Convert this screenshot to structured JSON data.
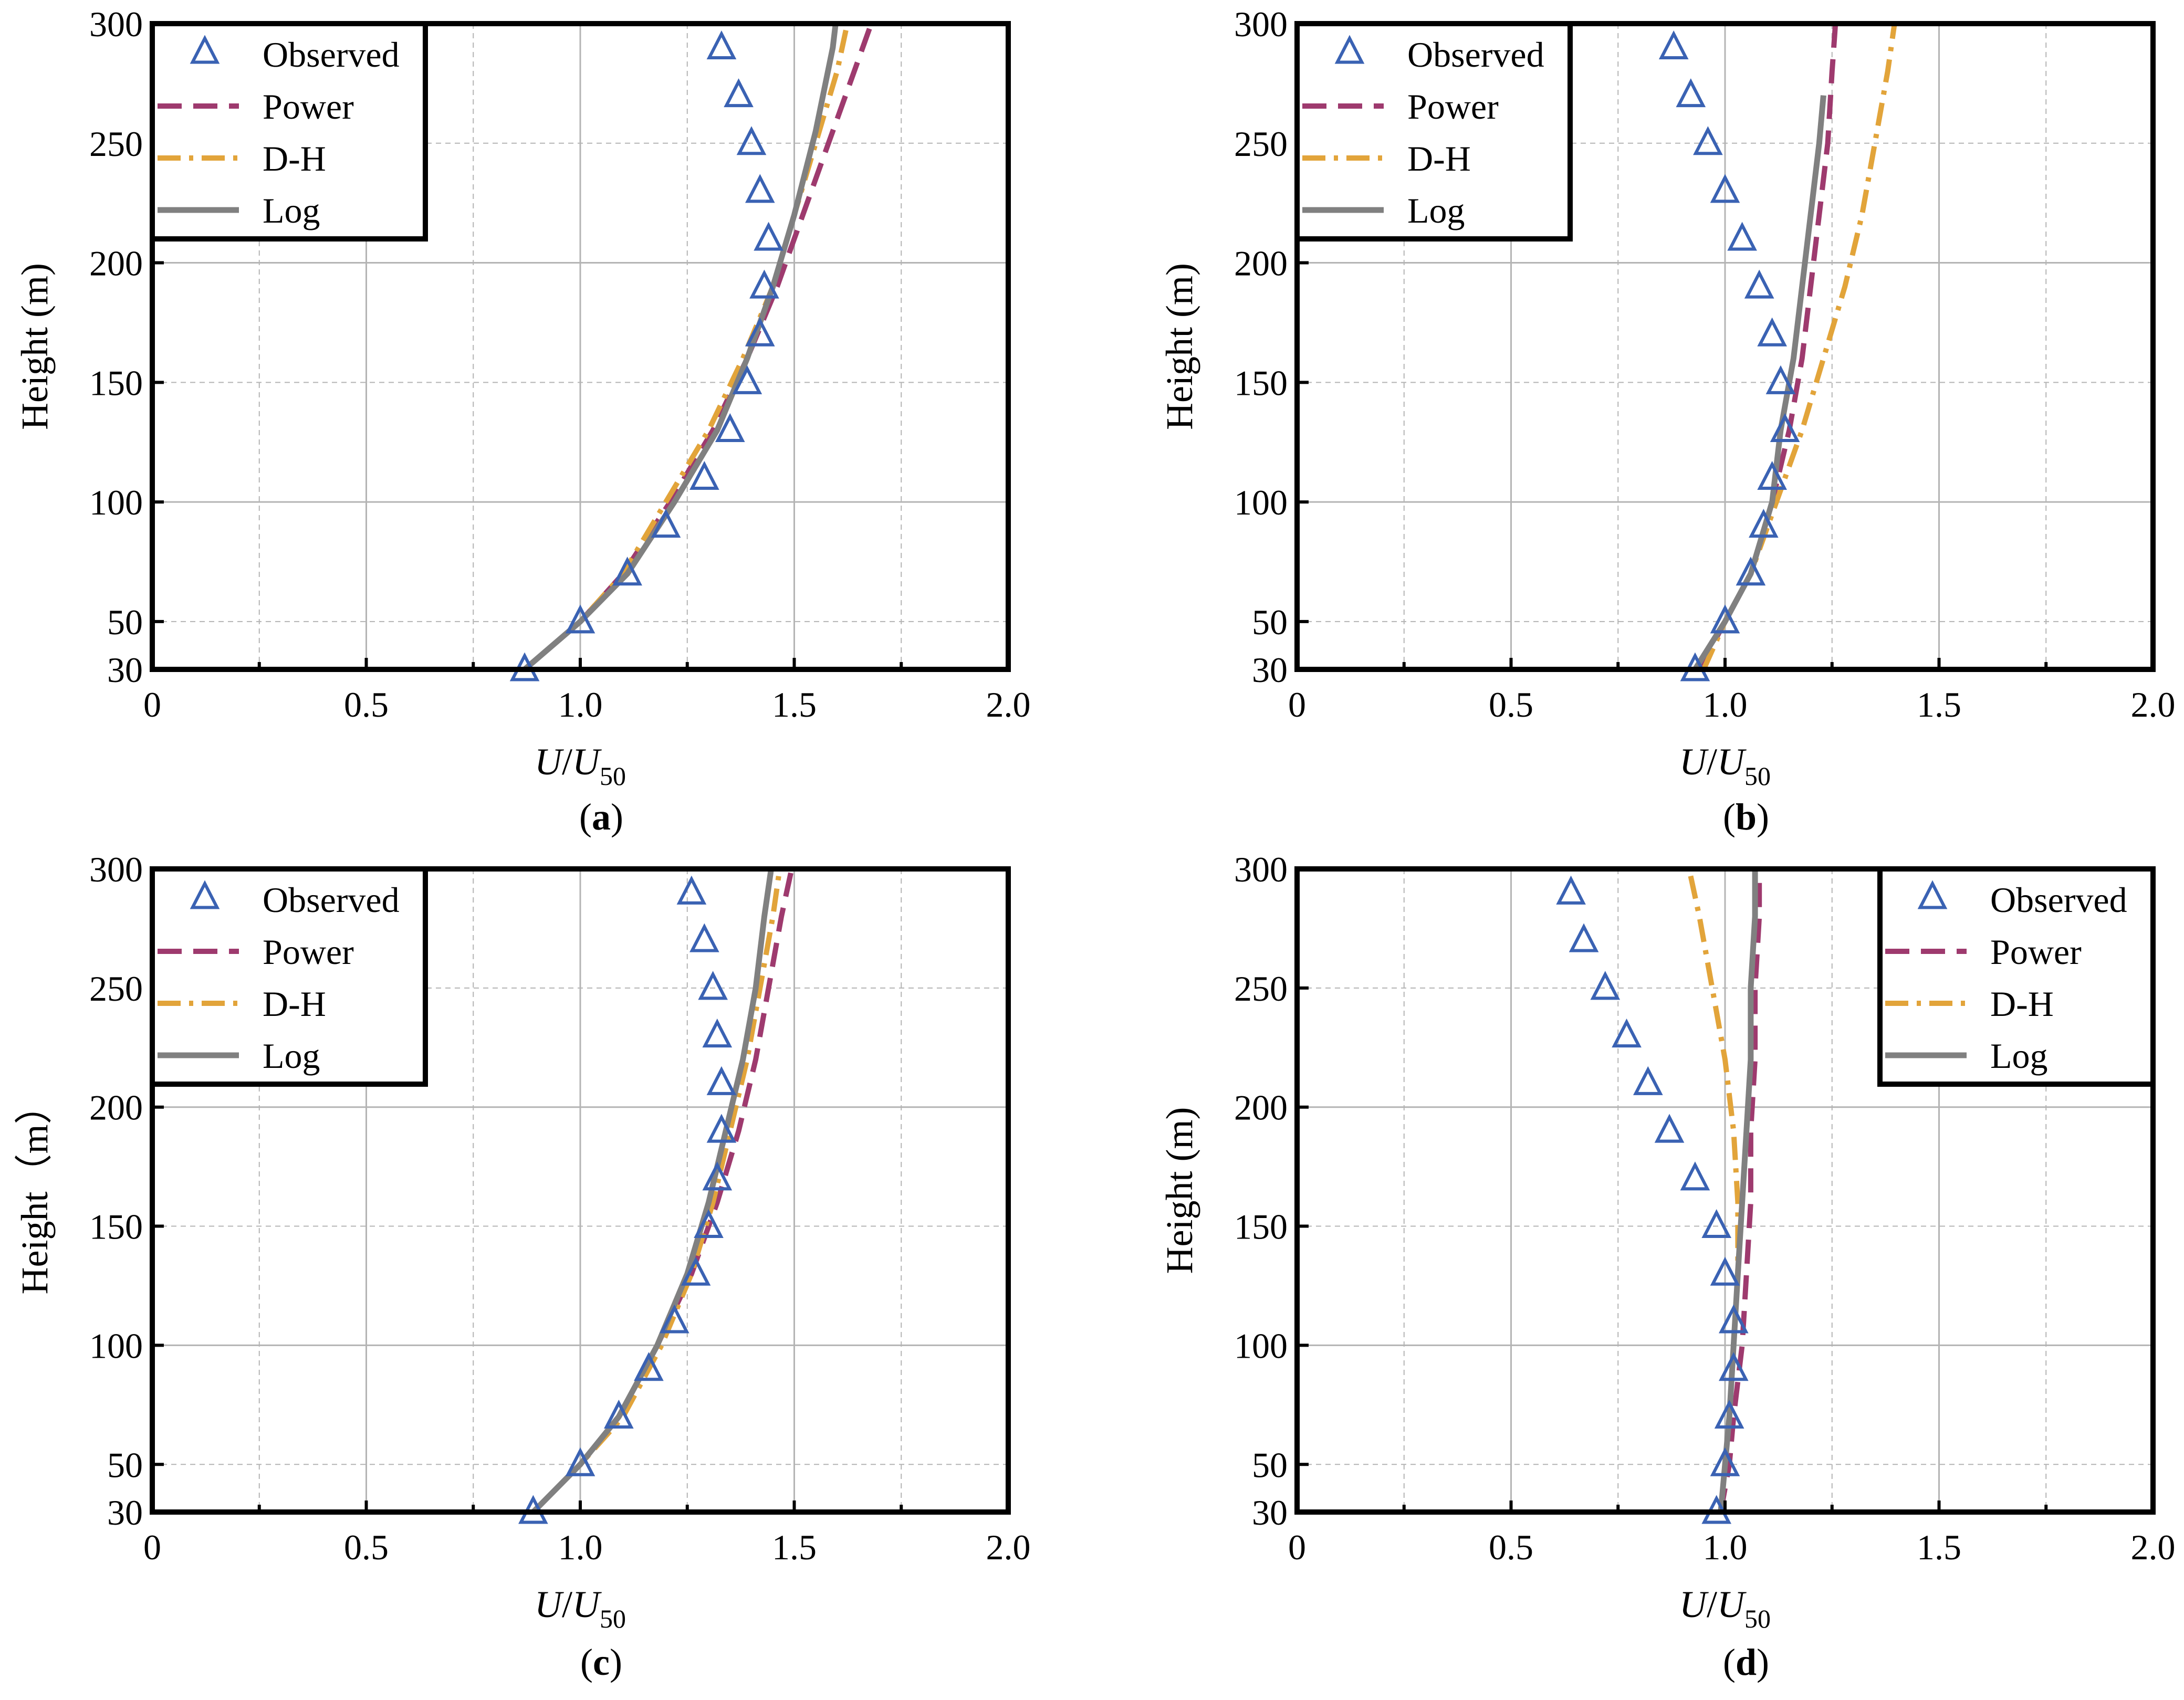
{
  "colors": {
    "observed": "#3a62b3",
    "power": "#9e3a6e",
    "dh": "#e2a43a",
    "log": "#808080",
    "grid": "#b4b4b4",
    "frame": "#000000"
  },
  "chart_data": [
    {
      "type": "line",
      "caption": "(a)",
      "caption_open": "(",
      "caption_letter": "a",
      "caption_close": ")",
      "xlabel": "U/U50",
      "xlabel_parts": {
        "u": "U",
        "slash": "/",
        "u2": "U",
        "sub": "50"
      },
      "ylabel": "Height (m)",
      "xlim": [
        0,
        2.0
      ],
      "ylim": [
        30,
        300
      ],
      "xticks": [
        0,
        0.5,
        1.0,
        1.5,
        2.0
      ],
      "xtick_labels": [
        "0",
        "0.5",
        "1.0",
        "1.5",
        "2.0"
      ],
      "yticks": [
        30,
        50,
        100,
        150,
        200,
        250,
        300
      ],
      "ytick_labels": [
        "30",
        "50",
        "100",
        "150",
        "200",
        "250",
        "300"
      ],
      "legend_position": "top-left",
      "legend": [
        "Observed",
        "Power",
        "D-H",
        "Log"
      ],
      "observed": {
        "name": "Observed",
        "x": [
          0.87,
          1.0,
          1.11,
          1.2,
          1.29,
          1.35,
          1.39,
          1.42,
          1.43,
          1.44,
          1.42,
          1.4,
          1.37,
          1.33
        ],
        "y": [
          30,
          50,
          70,
          90,
          110,
          130,
          150,
          170,
          190,
          210,
          230,
          250,
          270,
          290
        ]
      },
      "series": [
        {
          "name": "Power",
          "style": "dashed",
          "x": [
            0.87,
            1.0,
            1.1,
            1.21,
            1.31,
            1.39,
            1.46,
            1.52,
            1.57,
            1.62,
            1.66,
            1.69
          ],
          "y": [
            30,
            50,
            70,
            100,
            130,
            160,
            190,
            220,
            245,
            270,
            290,
            305
          ]
        },
        {
          "name": "D-H",
          "style": "dashdot",
          "x": [
            0.87,
            1.0,
            1.1,
            1.2,
            1.3,
            1.38,
            1.45,
            1.5,
            1.55,
            1.6,
            1.63
          ],
          "y": [
            30,
            50,
            70,
            100,
            130,
            160,
            190,
            220,
            250,
            280,
            305
          ]
        },
        {
          "name": "Log",
          "style": "solid",
          "x": [
            0.87,
            1.0,
            1.11,
            1.22,
            1.32,
            1.39,
            1.45,
            1.5,
            1.55,
            1.59,
            1.6
          ],
          "y": [
            30,
            50,
            70,
            100,
            130,
            160,
            190,
            220,
            255,
            290,
            305
          ]
        }
      ]
    },
    {
      "type": "line",
      "caption": "(b)",
      "caption_open": "(",
      "caption_letter": "b",
      "caption_close": ")",
      "xlabel": "U/U50",
      "xlabel_parts": {
        "u": "U",
        "slash": "/",
        "u2": "U",
        "sub": "50"
      },
      "ylabel": "Height (m)",
      "xlim": [
        0,
        2.0
      ],
      "ylim": [
        30,
        300
      ],
      "xticks": [
        0,
        0.5,
        1.0,
        1.5,
        2.0
      ],
      "xtick_labels": [
        "0",
        "0.5",
        "1.0",
        "1.5",
        "2.0"
      ],
      "yticks": [
        30,
        50,
        100,
        150,
        200,
        250,
        300
      ],
      "ytick_labels": [
        "30",
        "50",
        "100",
        "150",
        "200",
        "250",
        "300"
      ],
      "legend_position": "top-left",
      "legend": [
        "Observed",
        "Power",
        "D-H",
        "Log"
      ],
      "observed": {
        "name": "Observed",
        "x": [
          0.93,
          1.0,
          1.06,
          1.09,
          1.11,
          1.14,
          1.13,
          1.11,
          1.08,
          1.04,
          1.0,
          0.96,
          0.92,
          0.88
        ],
        "y": [
          30,
          50,
          70,
          90,
          110,
          130,
          150,
          170,
          190,
          210,
          230,
          250,
          270,
          290
        ]
      },
      "series": [
        {
          "name": "Power",
          "style": "dashed",
          "x": [
            0.94,
            1.0,
            1.06,
            1.11,
            1.15,
            1.18,
            1.2,
            1.22,
            1.24,
            1.25,
            1.26
          ],
          "y": [
            30,
            50,
            70,
            100,
            130,
            160,
            190,
            220,
            250,
            280,
            305
          ]
        },
        {
          "name": "D-H",
          "style": "dashdot",
          "x": [
            0.95,
            1.0,
            1.06,
            1.12,
            1.18,
            1.23,
            1.28,
            1.32,
            1.35,
            1.38,
            1.4
          ],
          "y": [
            30,
            50,
            70,
            100,
            130,
            160,
            190,
            220,
            250,
            280,
            305
          ]
        },
        {
          "name": "Log",
          "style": "solid",
          "x": [
            0.93,
            1.0,
            1.06,
            1.11,
            1.13,
            1.16,
            1.18,
            1.2,
            1.22,
            1.23
          ],
          "y": [
            30,
            50,
            70,
            100,
            130,
            160,
            190,
            220,
            250,
            270
          ]
        }
      ]
    },
    {
      "type": "line",
      "caption": "(c)",
      "caption_open": "(",
      "caption_letter": "c",
      "caption_close": ")",
      "xlabel": "U/U50",
      "xlabel_parts": {
        "u": "U",
        "slash": "/",
        "u2": "U",
        "sub": "50"
      },
      "ylabel": "Height（m）",
      "xlim": [
        0,
        2.0
      ],
      "ylim": [
        30,
        300
      ],
      "xticks": [
        0,
        0.5,
        1.0,
        1.5,
        2.0
      ],
      "xtick_labels": [
        "0",
        "0.5",
        "1.0",
        "1.5",
        "2.0"
      ],
      "yticks": [
        30,
        50,
        100,
        150,
        200,
        250,
        300
      ],
      "ytick_labels": [
        "30",
        "50",
        "100",
        "150",
        "200",
        "250",
        "300"
      ],
      "legend_position": "top-left",
      "legend": [
        "Observed",
        "Power",
        "D-H",
        "Log"
      ],
      "observed": {
        "name": "Observed",
        "x": [
          0.89,
          1.0,
          1.09,
          1.16,
          1.22,
          1.27,
          1.3,
          1.32,
          1.33,
          1.33,
          1.32,
          1.31,
          1.29,
          1.26
        ],
        "y": [
          30,
          50,
          70,
          90,
          110,
          130,
          150,
          170,
          190,
          210,
          230,
          250,
          270,
          290
        ]
      },
      "series": [
        {
          "name": "Power",
          "style": "dashed",
          "x": [
            0.89,
            1.0,
            1.09,
            1.18,
            1.26,
            1.32,
            1.37,
            1.41,
            1.44,
            1.47,
            1.5
          ],
          "y": [
            30,
            50,
            70,
            100,
            130,
            160,
            190,
            220,
            250,
            280,
            305
          ]
        },
        {
          "name": "D-H",
          "style": "dashdot",
          "x": [
            0.89,
            1.0,
            1.1,
            1.19,
            1.26,
            1.31,
            1.35,
            1.39,
            1.42,
            1.45,
            1.47
          ],
          "y": [
            30,
            50,
            70,
            100,
            130,
            160,
            190,
            220,
            250,
            280,
            305
          ]
        },
        {
          "name": "Log",
          "style": "solid",
          "x": [
            0.89,
            1.0,
            1.09,
            1.18,
            1.25,
            1.3,
            1.34,
            1.38,
            1.41,
            1.43,
            1.45
          ],
          "y": [
            30,
            50,
            70,
            100,
            130,
            160,
            190,
            220,
            250,
            280,
            305
          ]
        }
      ]
    },
    {
      "type": "line",
      "caption": "(d)",
      "caption_open": "(",
      "caption_letter": "d",
      "caption_close": ")",
      "xlabel": "U/U50",
      "xlabel_parts": {
        "u": "U",
        "slash": "/",
        "u2": "U",
        "sub": "50"
      },
      "ylabel": "Height (m)",
      "xlim": [
        0,
        2.0
      ],
      "ylim": [
        30,
        300
      ],
      "xticks": [
        0,
        0.5,
        1.0,
        1.5,
        2.0
      ],
      "xtick_labels": [
        "0",
        "0.5",
        "1.0",
        "1.5",
        "2.0"
      ],
      "yticks": [
        30,
        50,
        100,
        150,
        200,
        250,
        300
      ],
      "ytick_labels": [
        "30",
        "50",
        "100",
        "150",
        "200",
        "250",
        "300"
      ],
      "legend_position": "top-right",
      "legend": [
        "Observed",
        "Power",
        "D-H",
        "Log"
      ],
      "observed": {
        "name": "Observed",
        "x": [
          0.98,
          1.0,
          1.01,
          1.02,
          1.02,
          1.0,
          0.98,
          0.93,
          0.87,
          0.82,
          0.77,
          0.72,
          0.67,
          0.64
        ],
        "y": [
          30,
          50,
          70,
          90,
          110,
          130,
          150,
          170,
          190,
          210,
          230,
          250,
          270,
          290
        ]
      },
      "series": [
        {
          "name": "Power",
          "style": "dashed",
          "x": [
            0.99,
            1.01,
            1.02,
            1.04,
            1.05,
            1.06,
            1.06,
            1.07,
            1.07,
            1.08,
            1.08
          ],
          "y": [
            30,
            50,
            70,
            100,
            130,
            160,
            190,
            220,
            250,
            280,
            305
          ]
        },
        {
          "name": "D-H",
          "style": "dashdot",
          "x": [
            0.99,
            1.0,
            1.01,
            1.02,
            1.03,
            1.03,
            1.02,
            1.0,
            0.97,
            0.94,
            0.91
          ],
          "y": [
            30,
            50,
            70,
            100,
            130,
            160,
            190,
            220,
            250,
            280,
            305
          ]
        },
        {
          "name": "Log",
          "style": "solid",
          "x": [
            0.99,
            1.0,
            1.01,
            1.02,
            1.03,
            1.04,
            1.05,
            1.06,
            1.06,
            1.07,
            1.07
          ],
          "y": [
            30,
            50,
            70,
            100,
            130,
            160,
            190,
            220,
            250,
            280,
            305
          ]
        }
      ]
    }
  ]
}
